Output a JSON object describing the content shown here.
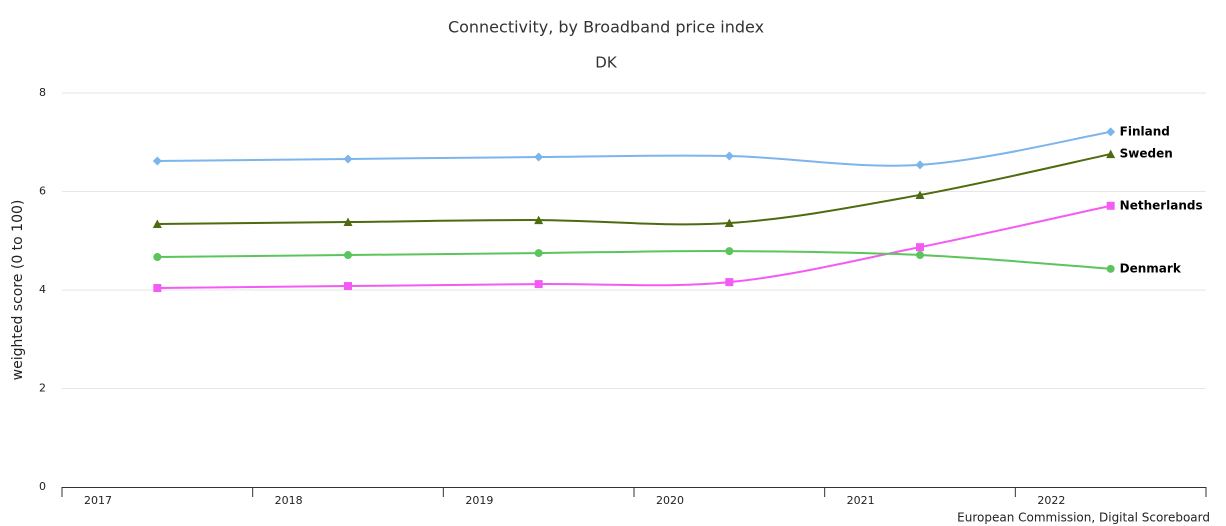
{
  "chart_data": {
    "type": "line",
    "title": "Connectivity, by Broadband price index",
    "subtitle": "DK",
    "y_label": "weighted score (0 to 100)",
    "credits": "European Commission, Digital Scoreboard",
    "categories": [
      "2017",
      "2018",
      "2019",
      "2020",
      "2021",
      "2022"
    ],
    "ylim": [
      0,
      8
    ],
    "yticks": [
      0,
      2,
      4,
      6,
      8
    ],
    "grid": true,
    "series": [
      {
        "name": "Finland",
        "color": "#7cb5ec",
        "marker": "diamond",
        "values": [
          6.62,
          6.66,
          6.7,
          6.72,
          6.54,
          7.21
        ]
      },
      {
        "name": "Sweden",
        "color": "#4d6b0f",
        "marker": "triangle",
        "values": [
          5.34,
          5.38,
          5.42,
          5.36,
          5.93,
          6.76
        ]
      },
      {
        "name": "Netherlands",
        "color": "#f45bf4",
        "marker": "square",
        "values": [
          4.04,
          4.08,
          4.12,
          4.16,
          4.87,
          5.71
        ]
      },
      {
        "name": "Denmark",
        "color": "#5cc45c",
        "marker": "circle",
        "values": [
          4.67,
          4.71,
          4.75,
          4.79,
          4.71,
          4.43
        ]
      }
    ]
  }
}
